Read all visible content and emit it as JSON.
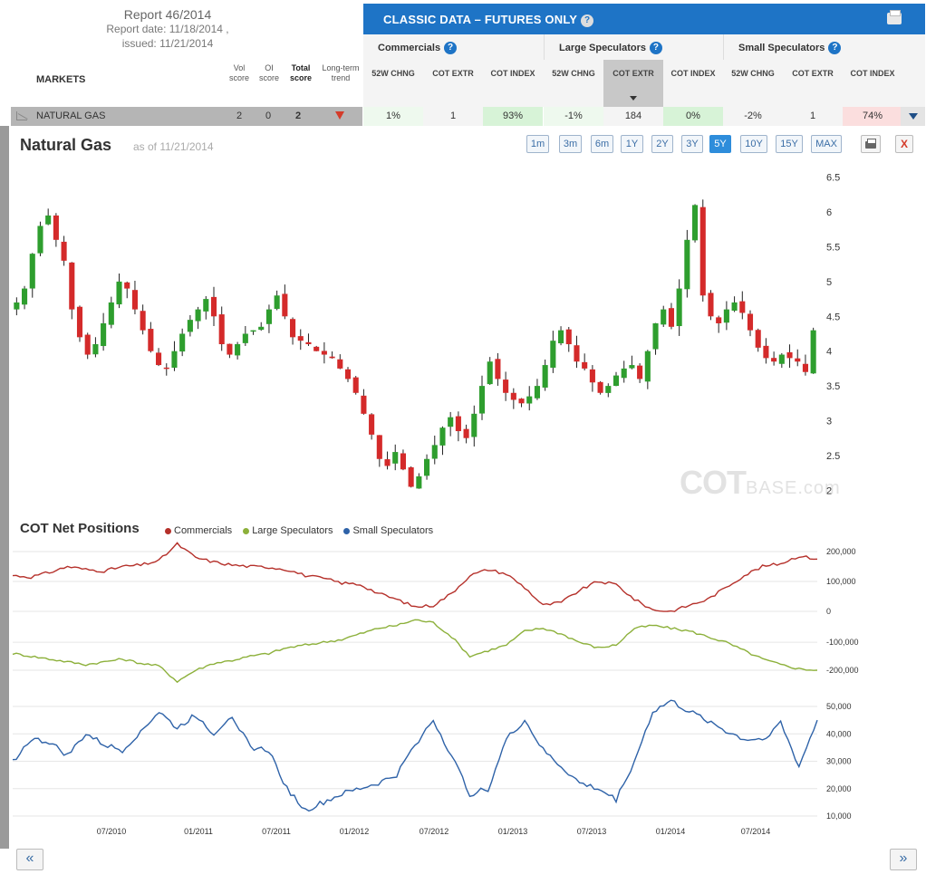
{
  "report": {
    "title": "Report 46/2014",
    "report_date": "Report date: 11/18/2014 ,",
    "issued": "issued: 11/21/2014"
  },
  "markets_header": {
    "label": "MARKETS",
    "vol_score": "Vol score",
    "oi_score": "OI score",
    "total_score": "Total score",
    "long_term_trend": "Long-term trend"
  },
  "panel": {
    "title": "CLASSIC DATA – FUTURES ONLY",
    "help": "?",
    "groups": [
      "Commercials",
      "Large Speculators",
      "Small Speculators"
    ],
    "columns": [
      "52W CHNG",
      "COT EXTR",
      "COT INDEX",
      "52W CHNG",
      "COT EXTR",
      "COT INDEX",
      "52W CHNG",
      "COT EXTR",
      "COT INDEX"
    ]
  },
  "market_row": {
    "name": "NATURAL GAS",
    "vol": "2",
    "oi": "0",
    "total": "2",
    "trend_icon": "arrow-down-icon",
    "cells": [
      "1%",
      "1",
      "93%",
      "-1%",
      "184",
      "0%",
      "-2%",
      "1",
      "74%"
    ],
    "cell_colors": [
      "#eef9ee",
      "#f4f4f4",
      "#d7f3d7",
      "#eef9ee",
      "#f4f4f4",
      "#d7f3d7",
      "#f4f4f4",
      "#f4f4f4",
      "#fbdede"
    ]
  },
  "chart_header": {
    "title": "Natural Gas",
    "as_of": "as of 11/21/2014",
    "ranges": [
      "1m",
      "3m",
      "6m",
      "1Y",
      "2Y",
      "3Y",
      "5Y",
      "10Y",
      "15Y",
      "MAX"
    ],
    "active_range": "5Y",
    "close": "X"
  },
  "net_positions": {
    "title": "COT Net Positions",
    "legend": [
      "Commercials",
      "Large Speculators",
      "Small Speculators"
    ]
  },
  "watermark": {
    "main": "COT",
    "sub": "BASE.com"
  },
  "nav": {
    "prev": "«",
    "next": "»"
  },
  "colors": {
    "accent": "#1e74c6",
    "candle_up": "#2e9e2e",
    "candle_down": "#d42a2a",
    "commercials": "#b5302a",
    "large_speculators": "#8cb03a",
    "small_speculators": "#2e62a8"
  },
  "chart_data": [
    {
      "type": "candlestick",
      "title": "Natural Gas",
      "x_ticks": [
        "07/2010",
        "01/2011",
        "07/2011",
        "01/2012",
        "07/2012",
        "01/2013",
        "07/2013",
        "01/2014",
        "07/2014"
      ],
      "y_ticks": [
        2,
        2.5,
        3,
        3.5,
        4,
        4.5,
        5,
        5.5,
        6,
        6.5
      ],
      "ylim": [
        1.9,
        6.6
      ],
      "weekly_close": [
        4.7,
        4.9,
        5.4,
        5.8,
        5.95,
        5.6,
        5.3,
        4.6,
        4.2,
        3.95,
        4.1,
        4.4,
        4.7,
        5.0,
        4.9,
        4.6,
        4.3,
        4.0,
        3.8,
        3.75,
        4.0,
        4.25,
        4.45,
        4.6,
        4.75,
        4.5,
        4.1,
        3.95,
        4.1,
        4.25,
        4.3,
        4.35,
        4.6,
        4.8,
        4.5,
        4.2,
        4.15,
        4.1,
        4.0,
        3.95,
        3.9,
        3.75,
        3.6,
        3.4,
        3.1,
        2.8,
        2.45,
        2.35,
        2.55,
        2.3,
        2.05,
        2.2,
        2.45,
        2.65,
        2.9,
        3.05,
        2.85,
        2.75,
        3.1,
        3.5,
        3.85,
        3.6,
        3.4,
        3.3,
        3.25,
        3.35,
        3.5,
        3.8,
        4.15,
        4.3,
        4.1,
        3.85,
        3.75,
        3.55,
        3.4,
        3.5,
        3.65,
        3.75,
        3.8,
        3.6,
        4.0,
        4.4,
        4.6,
        4.35,
        4.9,
        5.6,
        6.1,
        4.8,
        4.5,
        4.4,
        4.6,
        4.7,
        4.55,
        4.3,
        4.05,
        3.9,
        3.85,
        3.95,
        3.9,
        3.85,
        3.7,
        4.3
      ],
      "x_range": [
        "2009-11",
        "2014-11"
      ],
      "candle_colors": "green up / red down"
    },
    {
      "type": "line",
      "title": "COT Net Positions",
      "x_ticks": [
        "07/2010",
        "01/2011",
        "07/2011",
        "01/2012",
        "07/2012",
        "01/2013",
        "07/2013",
        "01/2014",
        "07/2014"
      ],
      "series": [
        {
          "name": "Commercials",
          "axis_ticks": [
            0,
            100000,
            200000
          ],
          "values": [
            120000,
            115000,
            130000,
            150000,
            140000,
            135000,
            150000,
            155000,
            170000,
            225000,
            180000,
            165000,
            155000,
            150000,
            148000,
            140000,
            120000,
            110000,
            95000,
            90000,
            60000,
            40000,
            15000,
            20000,
            60000,
            120000,
            140000,
            125000,
            80000,
            20000,
            30000,
            70000,
            100000,
            90000,
            40000,
            5000,
            0,
            20000,
            40000,
            80000,
            120000,
            150000,
            160000,
            185000,
            175000
          ]
        },
        {
          "name": "Large Speculators",
          "axis_ticks": [
            0,
            -100000,
            -200000
          ],
          "values": [
            -140000,
            -150000,
            -160000,
            -170000,
            -180000,
            -170000,
            -160000,
            -175000,
            -185000,
            -240000,
            -200000,
            -175000,
            -165000,
            -150000,
            -140000,
            -120000,
            -110000,
            -100000,
            -90000,
            -70000,
            -50000,
            -40000,
            -20000,
            -30000,
            -80000,
            -150000,
            -130000,
            -110000,
            -60000,
            -50000,
            -70000,
            -100000,
            -120000,
            -110000,
            -50000,
            -40000,
            -50000,
            -60000,
            -80000,
            -100000,
            -130000,
            -160000,
            -180000,
            -195000,
            -200000
          ]
        },
        {
          "name": "Small Speculators",
          "axis_ticks": [
            10000,
            20000,
            30000,
            40000,
            50000
          ],
          "values": [
            30000,
            38000,
            37000,
            32000,
            40000,
            36000,
            34000,
            41000,
            48000,
            42000,
            47000,
            40000,
            47000,
            35000,
            34000,
            20000,
            12000,
            15000,
            18000,
            20000,
            22000,
            25000,
            36000,
            45000,
            32000,
            18000,
            20000,
            38000,
            45000,
            34000,
            28000,
            22000,
            20000,
            16000,
            30000,
            48000,
            52000,
            48000,
            45000,
            41000,
            38000,
            38000,
            44000,
            28000,
            45000
          ]
        }
      ]
    }
  ]
}
